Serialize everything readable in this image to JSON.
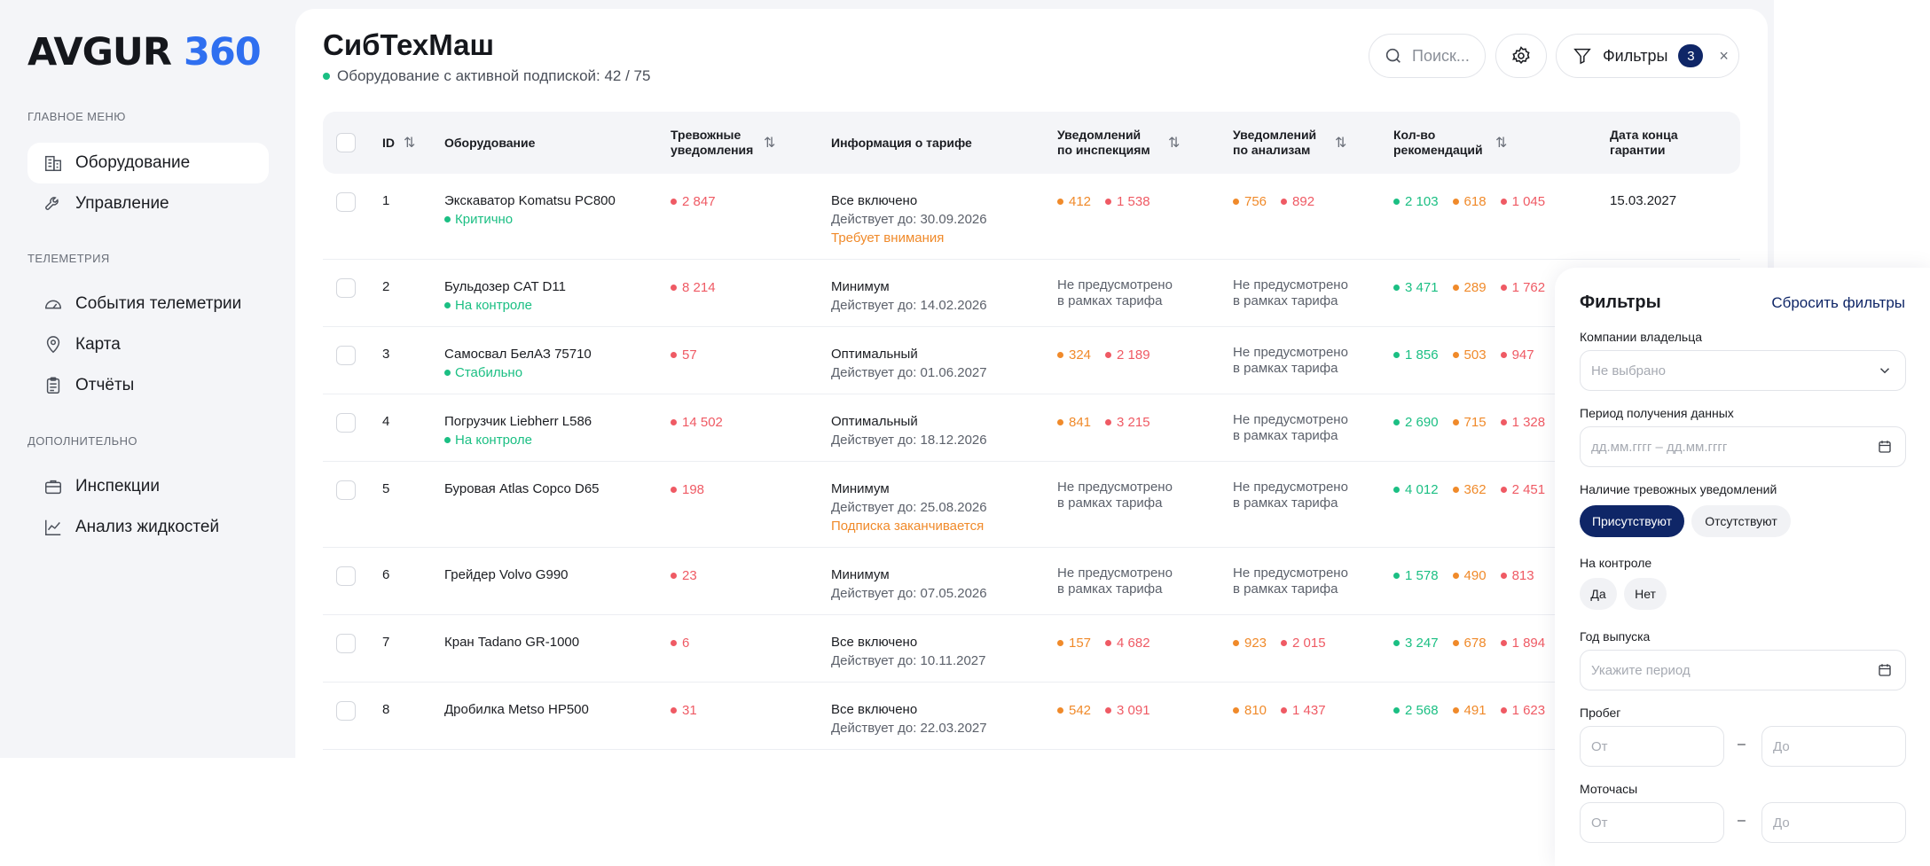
{
  "logo": {
    "text": "AVGUR ",
    "num": "360"
  },
  "sidebar": {
    "sections": [
      {
        "title": "ГЛАВНОЕ МЕНЮ"
      },
      {
        "title": "ТЕЛЕМЕТРИЯ"
      },
      {
        "title": "ДОПОЛНИТЕЛЬНО"
      }
    ],
    "items": [
      {
        "label": "Оборудование",
        "icon": "building-icon"
      },
      {
        "label": "Управление",
        "icon": "wrench-icon"
      },
      {
        "label": "События телеметрии",
        "icon": "gauge-icon"
      },
      {
        "label": "Карта",
        "icon": "map-pin-icon"
      },
      {
        "label": "Отчёты",
        "icon": "clipboard-icon"
      },
      {
        "label": "Инспекции",
        "icon": "briefcase-icon"
      },
      {
        "label": "Анализ жидкостей",
        "icon": "chart-line-icon"
      }
    ]
  },
  "header": {
    "title": "СибТехМаш",
    "subtitle": "Оборудование с активной подпиской: 42 / 75",
    "search_placeholder": "Поиск...",
    "filters_label": "Фильтры",
    "filters_count": "3",
    "close": "×"
  },
  "table": {
    "columns": {
      "id": "ID",
      "equipment": "Оборудование",
      "alerts": "Тревожные уведомления",
      "tariff": "Информация о тарифе",
      "inspections": "Уведомлений по инспекциям",
      "analyses": "Уведомлений по анализам",
      "recommendations": "Кол-во рекомендаций",
      "warranty": "Дата конца гарантии"
    },
    "rows": [
      {
        "id": "1",
        "name": "Экскаватор Komatsu PC800",
        "status": "Критично",
        "alerts": "2 847",
        "tariff": "Все включено",
        "valid": "Действует до: 30.09.2026",
        "note": "Требует внимания",
        "insp": [
          "412",
          "1 538"
        ],
        "anal": [
          "756",
          "892"
        ],
        "rec": [
          "2 103",
          "618",
          "1 045"
        ],
        "warranty": "15.03.2027"
      },
      {
        "id": "2",
        "name": "Бульдозер CAT D11",
        "status": "На контроле",
        "alerts": "8 214",
        "tariff": "Минимум",
        "valid": "Действует до: 14.02.2026",
        "note": "",
        "insp": null,
        "anal": null,
        "rec": [
          "3 471",
          "289",
          "1 762"
        ],
        "warranty": ""
      },
      {
        "id": "3",
        "name": "Самосвал БелАЗ 75710",
        "status": "Стабильно",
        "alerts": "57",
        "tariff": "Оптимальный",
        "valid": "Действует до: 01.06.2027",
        "note": "",
        "insp": [
          "324",
          "2 189"
        ],
        "anal": null,
        "rec": [
          "1 856",
          "503",
          "947"
        ],
        "warranty": ""
      },
      {
        "id": "4",
        "name": "Погрузчик Liebherr L586",
        "status": "На контроле",
        "alerts": "14 502",
        "tariff": "Оптимальный",
        "valid": "Действует до: 18.12.2026",
        "note": "",
        "insp": [
          "841",
          "3 215"
        ],
        "anal": null,
        "rec": [
          "2 690",
          "715",
          "1 328"
        ],
        "warranty": ""
      },
      {
        "id": "5",
        "name": "Буровая Atlas Copco D65",
        "status": "",
        "alerts": "198",
        "tariff": "Минимум",
        "valid": "Действует до: 25.08.2026",
        "note": "Подписка заканчивается",
        "insp": null,
        "anal": null,
        "rec": [
          "4 012",
          "362",
          "2 451"
        ],
        "warranty": ""
      },
      {
        "id": "6",
        "name": "Грейдер Volvo G990",
        "status": "",
        "alerts": "23",
        "tariff": "Минимум",
        "valid": "Действует до: 07.05.2026",
        "note": "",
        "insp": null,
        "anal": null,
        "rec": [
          "1 578",
          "490",
          "813"
        ],
        "warranty": ""
      },
      {
        "id": "7",
        "name": "Кран Tadano GR-1000",
        "status": "",
        "alerts": "6",
        "tariff": "Все включено",
        "valid": "Действует до: 10.11.2027",
        "note": "",
        "insp": [
          "157",
          "4 682"
        ],
        "anal": [
          "923",
          "2 015"
        ],
        "rec": [
          "3 247",
          "678",
          "1 894"
        ],
        "warranty": ""
      },
      {
        "id": "8",
        "name": "Дробилка Metso HP500",
        "status": "",
        "alerts": "31",
        "tariff": "Все включено",
        "valid": "Действует до: 22.03.2027",
        "note": "",
        "insp": [
          "542",
          "3 091"
        ],
        "anal": [
          "810",
          "1 437"
        ],
        "rec": [
          "2 568",
          "491",
          "1 623"
        ],
        "warranty": ""
      }
    ],
    "not_provided": [
      "Не предусмотрено",
      "в рамках тарифа"
    ]
  },
  "filters": {
    "title": "Фильтры",
    "reset": "Сбросить фильтры",
    "owner_label": "Компании владельца",
    "owner_placeholder": "Не выбрано",
    "period_label": "Период получения данных",
    "period_placeholder": "дд.мм.гггг – дд.мм.гггг",
    "alerts_label": "Наличие тревожных уведомлений",
    "alerts_on": "Присутствуют",
    "alerts_off": "Отсутствуют",
    "control_label": "На контроле",
    "yes": "Да",
    "no": "Нет",
    "year_label": "Год выпуска",
    "year_placeholder": "Укажите период",
    "mileage_label": "Пробег",
    "hours_label": "Моточасы",
    "from": "От",
    "to": "До",
    "dash": "–"
  }
}
